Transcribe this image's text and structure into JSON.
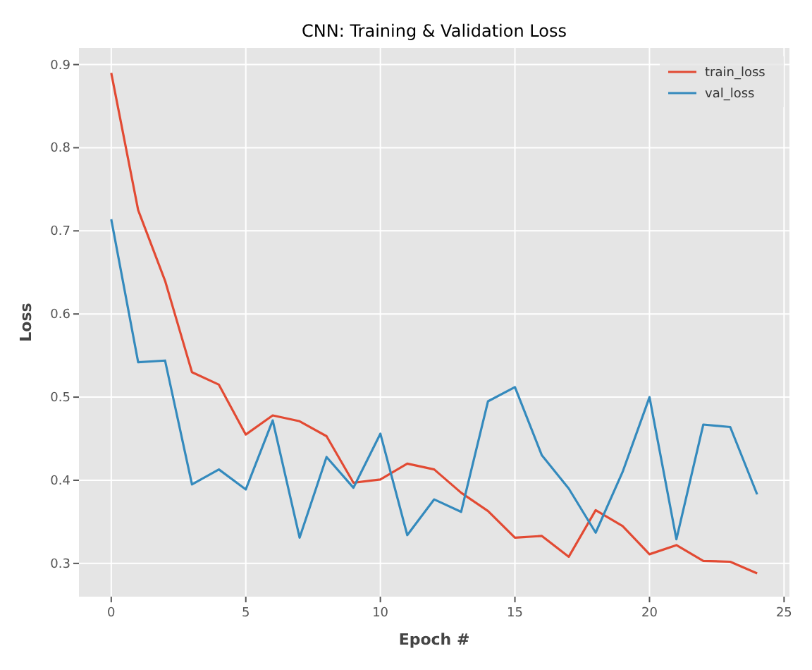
{
  "chart_data": {
    "type": "line",
    "title": "CNN: Training & Validation Loss",
    "xlabel": "Epoch #",
    "ylabel": "Loss",
    "x": [
      0,
      1,
      2,
      3,
      4,
      5,
      6,
      7,
      8,
      9,
      10,
      11,
      12,
      13,
      14,
      15,
      16,
      17,
      18,
      19,
      20,
      21,
      22,
      23,
      24
    ],
    "series": [
      {
        "name": "train_loss",
        "color": "#e24a33",
        "values": [
          0.89,
          0.725,
          0.64,
          0.53,
          0.515,
          0.455,
          0.478,
          0.471,
          0.453,
          0.397,
          0.401,
          0.42,
          0.413,
          0.385,
          0.363,
          0.331,
          0.333,
          0.308,
          0.364,
          0.345,
          0.311,
          0.322,
          0.303,
          0.302,
          0.288
        ]
      },
      {
        "name": "val_loss",
        "color": "#348abd",
        "values": [
          0.714,
          0.542,
          0.544,
          0.395,
          0.413,
          0.389,
          0.472,
          0.331,
          0.428,
          0.391,
          0.456,
          0.334,
          0.377,
          0.362,
          0.495,
          0.512,
          0.43,
          0.39,
          0.337,
          0.41,
          0.5,
          0.329,
          0.467,
          0.464,
          0.383
        ]
      }
    ],
    "xlim": [
      -1.2,
      25.2
    ],
    "xticks": [
      0,
      5,
      10,
      15,
      20,
      25
    ],
    "ylim": [
      0.26,
      0.92
    ],
    "yticks": [
      0.3,
      0.4,
      0.5,
      0.6,
      0.7,
      0.8,
      0.9
    ],
    "grid": true,
    "legend": "top right",
    "line_style": "solid",
    "marker": "none"
  }
}
